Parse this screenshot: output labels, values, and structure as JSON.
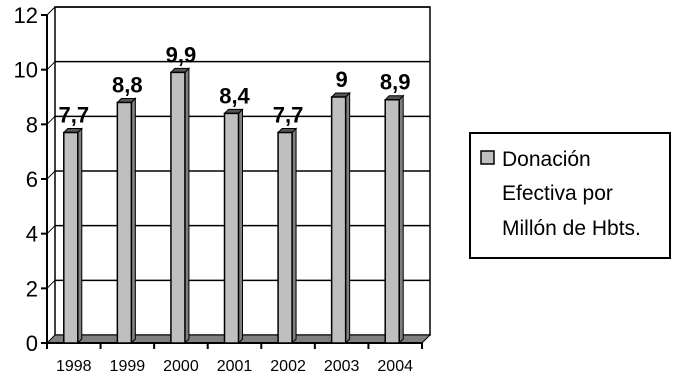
{
  "chart_data": {
    "type": "bar",
    "categories": [
      "1998",
      "1999",
      "2000",
      "2001",
      "2002",
      "2003",
      "2004"
    ],
    "series": [
      {
        "name": "Donación Efectiva por Millón de Hbts.",
        "values": [
          7.7,
          8.8,
          9.9,
          8.4,
          7.7,
          9,
          8.9
        ],
        "labels": [
          "7,7",
          "8,8",
          "9,9",
          "8,4",
          "7,7",
          "9",
          "8,9"
        ]
      }
    ],
    "ylim": [
      0,
      12
    ],
    "yticks": [
      0,
      2,
      4,
      6,
      8,
      10,
      12
    ],
    "grid": true,
    "legend_position": "right",
    "legend_lines": [
      "Donación",
      "Efectiva por",
      "Millón de Hbts."
    ],
    "style": "3d-columns",
    "bar_color": "#bfbfbf",
    "title": "",
    "xlabel": "",
    "ylabel": ""
  }
}
